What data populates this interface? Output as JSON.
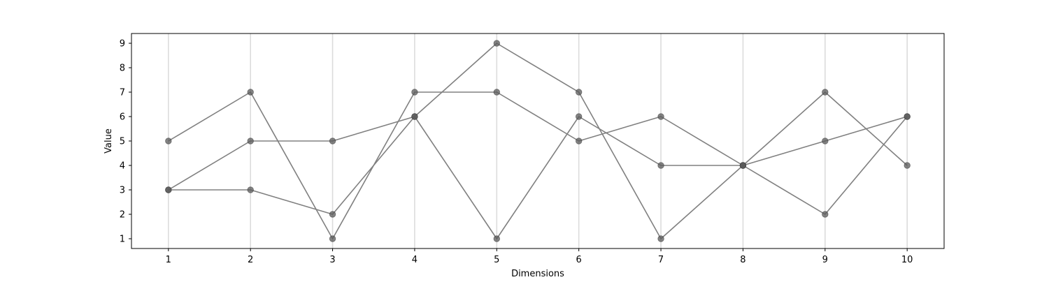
{
  "chart_data": {
    "type": "line",
    "title": "",
    "xlabel": "Dimensions",
    "ylabel": "Value",
    "x": [
      1,
      2,
      3,
      4,
      5,
      6,
      7,
      8,
      9,
      10
    ],
    "xlim": [
      0.55,
      10.45
    ],
    "ylim": [
      0.6,
      9.4
    ],
    "x_ticks": [
      1,
      2,
      3,
      4,
      5,
      6,
      7,
      8,
      9,
      10
    ],
    "y_ticks": [
      1,
      2,
      3,
      4,
      5,
      6,
      7,
      8,
      9
    ],
    "vertical_gridlines": true,
    "horizontal_gridlines": false,
    "legend": "none",
    "series": [
      {
        "values": [
          5,
          7,
          1,
          7,
          7,
          5,
          6,
          4,
          2,
          6
        ]
      },
      {
        "values": [
          3,
          5,
          5,
          6,
          9,
          7,
          1,
          4,
          7,
          4
        ]
      },
      {
        "values": [
          3,
          3,
          2,
          6,
          1,
          6,
          4,
          4,
          5,
          6
        ]
      }
    ],
    "colors": {
      "line": "#808080",
      "marker": "#595959",
      "grid": "#dcdcdc",
      "axes": "#000000"
    }
  }
}
